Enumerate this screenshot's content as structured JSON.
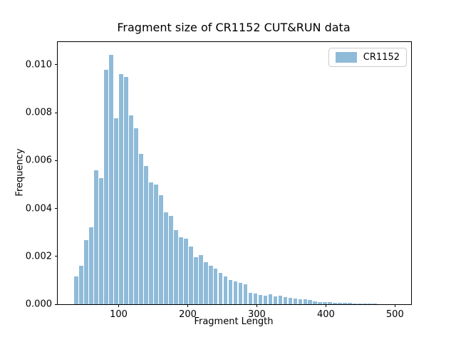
{
  "chart_data": {
    "type": "bar",
    "subtype": "histogram",
    "title": "Fragment size of CR1152 CUT&RUN data",
    "xlabel": "Fragment Length",
    "ylabel": "Frequency",
    "grid": false,
    "bar_color": "#8FBBD9",
    "spine_color": "#000000",
    "legend": {
      "position": "upper right",
      "entries": [
        {
          "label": "CR1152",
          "color": "#8FBBD9"
        }
      ]
    },
    "xlim": [
      11.75,
      523.4
    ],
    "ylim": [
      0,
      0.010952
    ],
    "xticks": {
      "values": [
        100,
        200,
        300,
        400,
        500
      ],
      "labels": [
        "100",
        "200",
        "300",
        "400",
        "500"
      ]
    },
    "yticks": {
      "values": [
        0.0,
        0.002,
        0.004,
        0.006,
        0.008,
        0.01
      ],
      "labels": [
        "0.000",
        "0.002",
        "0.004",
        "0.006",
        "0.008",
        "0.010"
      ]
    },
    "bins": {
      "start": 35,
      "width": 7.22,
      "count": 61
    },
    "frequencies": [
      0.00117,
      0.0016,
      0.00268,
      0.0032,
      0.0056,
      0.00526,
      0.0098,
      0.01043,
      0.00778,
      0.00962,
      0.0095,
      0.0079,
      0.00735,
      0.00628,
      0.00578,
      0.0051,
      0.005,
      0.00454,
      0.00385,
      0.0037,
      0.0031,
      0.0028,
      0.00275,
      0.00241,
      0.00195,
      0.00205,
      0.00175,
      0.0016,
      0.0015,
      0.0013,
      0.00115,
      0.001,
      0.00095,
      0.0009,
      0.00083,
      0.00048,
      0.00045,
      0.0004,
      0.00035,
      0.00043,
      0.00032,
      0.00036,
      0.0003,
      0.00028,
      0.00025,
      0.00022,
      0.0002,
      0.00018,
      0.00013,
      0.0001,
      0.0001,
      8e-05,
      7e-05,
      6e-05,
      5e-05,
      5e-05,
      4e-05,
      4e-05,
      3e-05,
      3e-05,
      2e-05
    ]
  }
}
